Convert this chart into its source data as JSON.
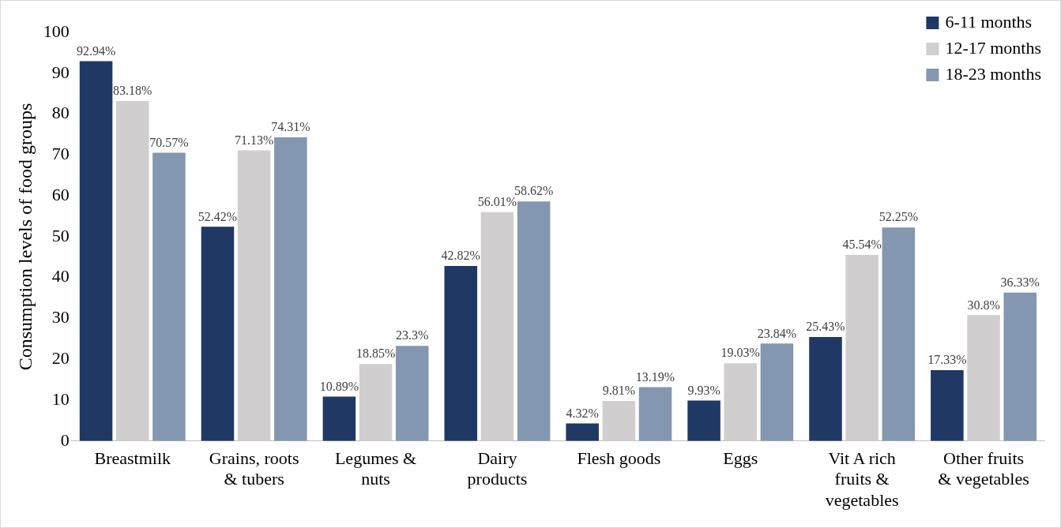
{
  "chart_data": {
    "type": "bar",
    "ylabel": "Consumption levels of food groups",
    "categories": [
      "Breastmilk",
      "Grains, roots & tubers",
      "Legumes & nuts",
      "Dairy products",
      "Flesh goods",
      "Eggs",
      "Vit A rich fruits & vegetables",
      "Other fruits & vegetables"
    ],
    "series": [
      {
        "name": "6-11 months",
        "color": "#203864",
        "values": [
          92.94,
          52.42,
          10.89,
          42.82,
          4.32,
          9.93,
          25.43,
          17.33
        ],
        "value_labels": [
          "92.94%",
          "52.42%",
          "10.89%",
          "42.82%",
          "4.32%",
          "9.93%",
          "25.43%",
          "17.33%"
        ]
      },
      {
        "name": "12-17 months",
        "color": "#d0cece",
        "values": [
          83.18,
          71.13,
          18.85,
          56.01,
          9.81,
          19.03,
          45.54,
          30.8
        ],
        "value_labels": [
          "83.18%",
          "71.13%",
          "18.85%",
          "56.01%",
          "9.81%",
          "19.03%",
          "45.54%",
          "30.8%"
        ]
      },
      {
        "name": "18-23 months",
        "color": "#8497b0",
        "values": [
          70.57,
          74.31,
          23.3,
          58.62,
          13.19,
          23.84,
          52.25,
          36.33
        ],
        "value_labels": [
          "70.57%",
          "74.31%",
          "23.3%",
          "58.62%",
          "13.19%",
          "23.84%",
          "52.25%",
          "36.33%"
        ]
      }
    ],
    "ylim": [
      0,
      100
    ],
    "yticks": [
      0,
      10,
      20,
      30,
      40,
      50,
      60,
      70,
      80,
      90,
      100
    ],
    "grid": false,
    "legend": "top right"
  }
}
